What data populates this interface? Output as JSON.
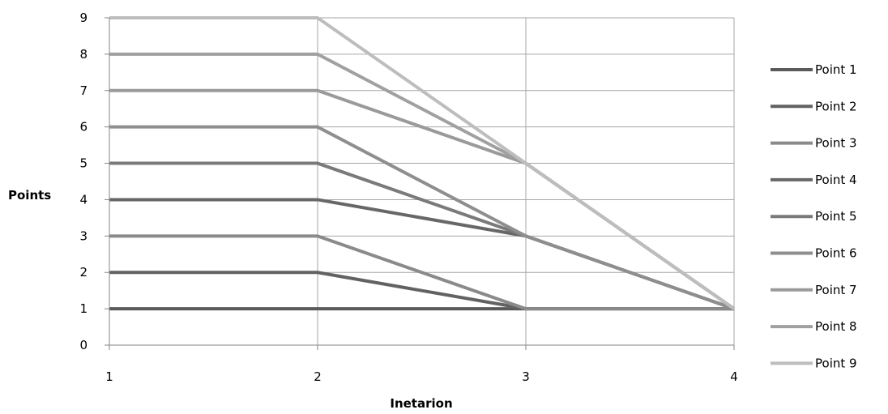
{
  "chart_data": {
    "type": "line",
    "xlabel": "Inetarion",
    "ylabel": "Points",
    "xlim": [
      1,
      4
    ],
    "ylim": [
      0,
      9
    ],
    "x_ticks": [
      "1",
      "2",
      "3",
      "4"
    ],
    "y_ticks": [
      "0",
      "1",
      "2",
      "3",
      "4",
      "5",
      "6",
      "7",
      "8",
      "9"
    ],
    "grid": true,
    "legend_position": "right",
    "x": [
      1,
      2,
      3,
      4
    ],
    "series": [
      {
        "name": "Point 1",
        "values": [
          1,
          1,
          1,
          1
        ],
        "color": "#5a5a5a"
      },
      {
        "name": "Point 2",
        "values": [
          2,
          2,
          1,
          1
        ],
        "color": "#626262"
      },
      {
        "name": "Point 3",
        "values": [
          3,
          3,
          1,
          1
        ],
        "color": "#8a8a8a"
      },
      {
        "name": "Point 4",
        "values": [
          4,
          4,
          3,
          1
        ],
        "color": "#676767"
      },
      {
        "name": "Point 5",
        "values": [
          5,
          5,
          3,
          1
        ],
        "color": "#7a7a7a"
      },
      {
        "name": "Point 6",
        "values": [
          6,
          6,
          3,
          1
        ],
        "color": "#8e8e8e"
      },
      {
        "name": "Point 7",
        "values": [
          7,
          7,
          5,
          1
        ],
        "color": "#9a9a9a"
      },
      {
        "name": "Point 8",
        "values": [
          8,
          8,
          5,
          1
        ],
        "color": "#a0a0a0"
      },
      {
        "name": "Point 9",
        "values": [
          9,
          9,
          5,
          1
        ],
        "color": "#bdbdbd"
      }
    ]
  }
}
